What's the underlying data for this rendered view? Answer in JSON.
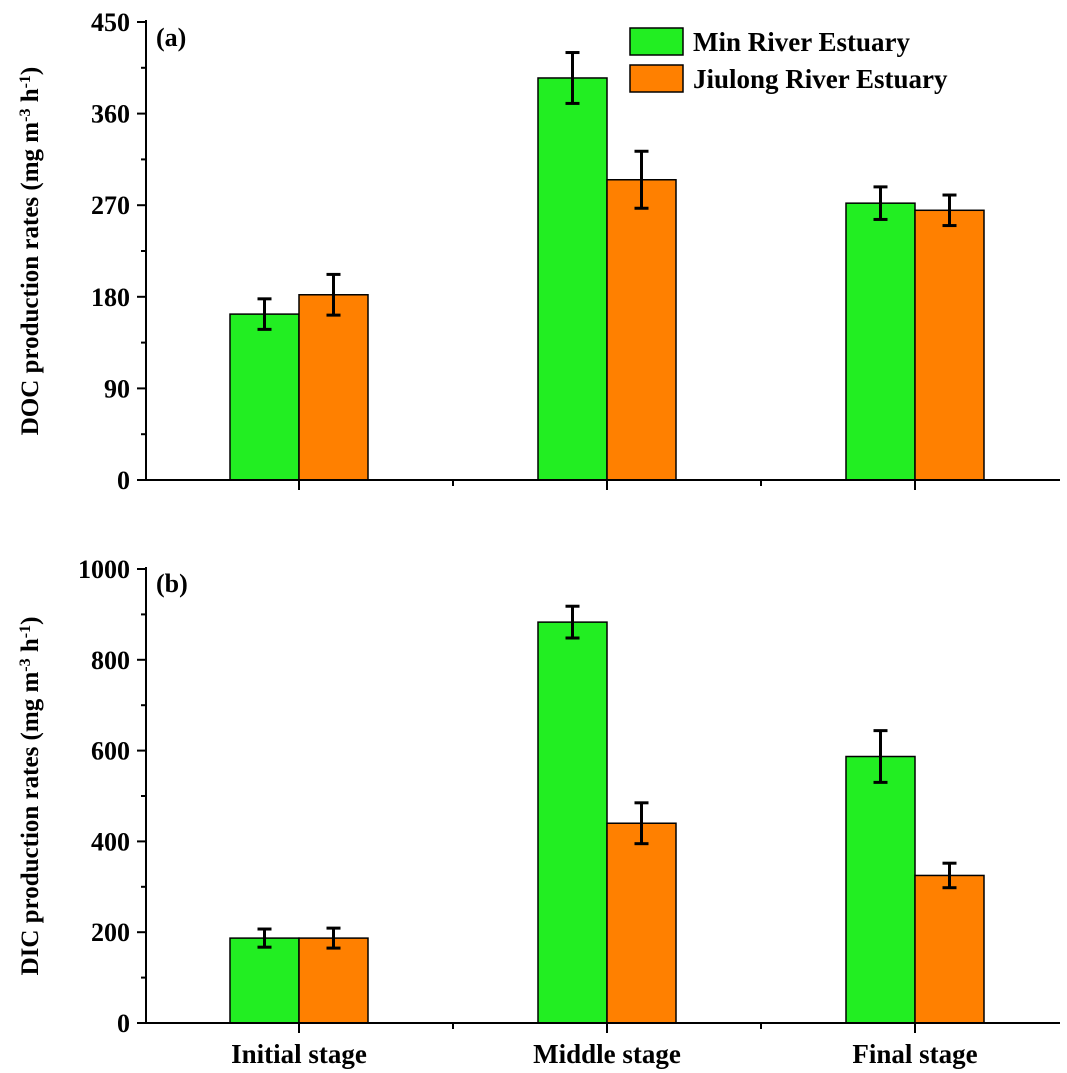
{
  "colors": {
    "min_river": "#22ee22",
    "jiulong_river": "#ff8000",
    "axis": "#000000"
  },
  "chart_data": [
    {
      "type": "bar",
      "panel_label": "(a)",
      "categories": [
        "Initial stage",
        "Middle stage",
        "Final stage"
      ],
      "series": [
        {
          "name": "Min River Estuary",
          "values": [
            163,
            395,
            272
          ],
          "errors": [
            15,
            25,
            16
          ]
        },
        {
          "name": "Jiulong River Estuary",
          "values": [
            182,
            295,
            265
          ],
          "errors": [
            20,
            28,
            15
          ]
        }
      ],
      "ylabel": {
        "main": "DOC production rates (mg m",
        "sup1": "-3",
        "mid": " h",
        "sup2": "-1",
        "end": ")"
      },
      "ylim": [
        0,
        450
      ],
      "yticks": [
        0,
        90,
        180,
        270,
        360,
        450
      ],
      "legend": "top-right",
      "grid": false
    },
    {
      "type": "bar",
      "panel_label": "(b)",
      "categories": [
        "Initial stage",
        "Middle stage",
        "Final stage"
      ],
      "series": [
        {
          "name": "Min River Estuary",
          "values": [
            187,
            883,
            587
          ],
          "errors": [
            20,
            35,
            57
          ]
        },
        {
          "name": "Jiulong River Estuary",
          "values": [
            187,
            440,
            325
          ],
          "errors": [
            22,
            45,
            27
          ]
        }
      ],
      "ylabel": {
        "main": "DIC production rates (mg m",
        "sup1": "-3",
        "mid": " h",
        "sup2": "-1",
        "end": ")"
      },
      "ylim": [
        0,
        1000
      ],
      "yticks": [
        0,
        200,
        400,
        600,
        800,
        1000
      ],
      "grid": false
    }
  ]
}
